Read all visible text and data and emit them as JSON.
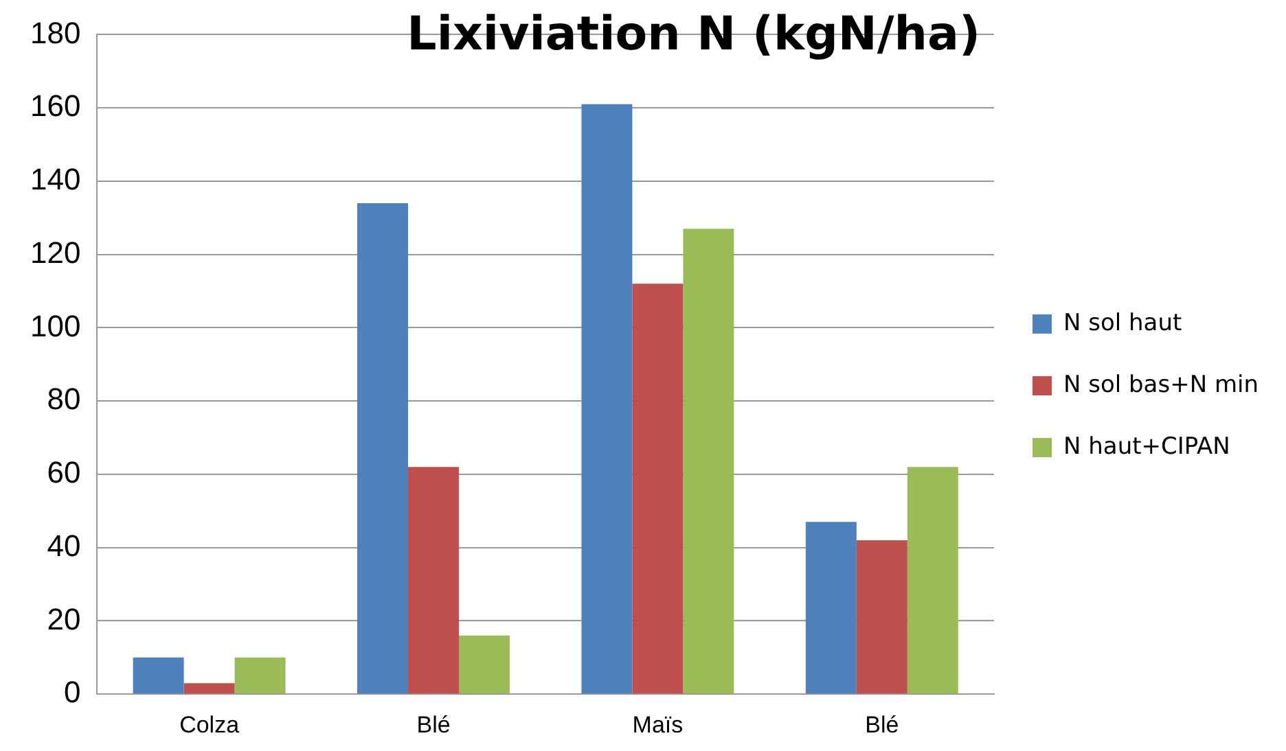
{
  "chart_data": {
    "type": "bar",
    "title": "Lixiviation N (kgN/ha)",
    "categories": [
      "Colza",
      "Blé",
      "Maïs",
      "Blé"
    ],
    "series": [
      {
        "name": "N sol haut",
        "color": "#4f81bd",
        "values": [
          10,
          134,
          161,
          47
        ]
      },
      {
        "name": "N sol bas+N min",
        "color": "#c0504d",
        "values": [
          3,
          62,
          112,
          42
        ]
      },
      {
        "name": "N haut+CIPAN",
        "color": "#9bbb59",
        "values": [
          10,
          16,
          127,
          62
        ]
      }
    ],
    "ylim": [
      0,
      180
    ],
    "yticks": [
      0,
      20,
      40,
      60,
      80,
      100,
      120,
      140,
      160,
      180
    ],
    "grid": "y",
    "legend": "right"
  }
}
